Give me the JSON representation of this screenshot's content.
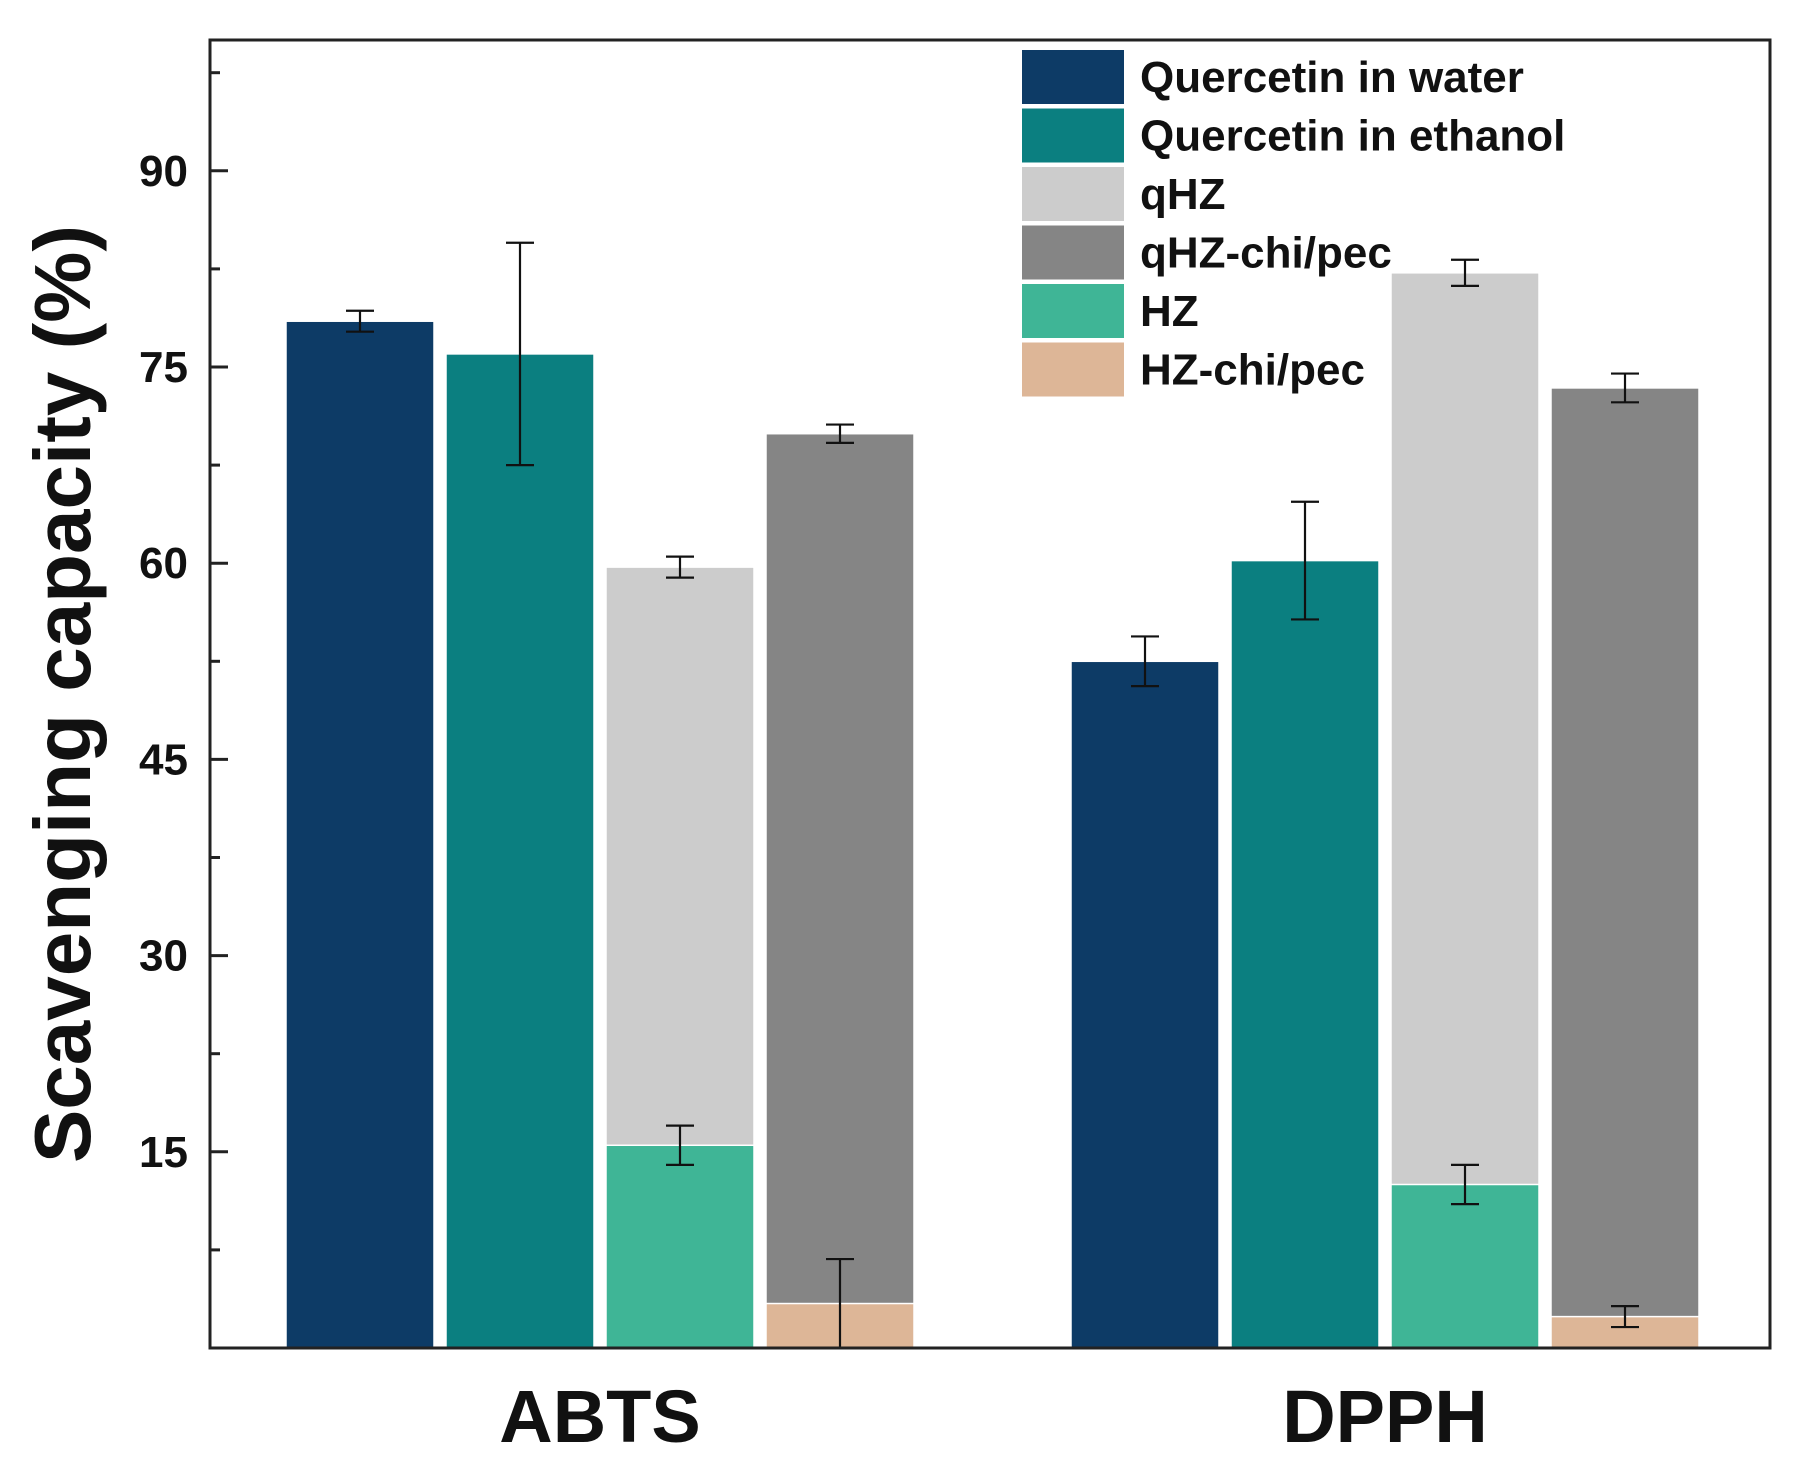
{
  "chart_data": {
    "type": "bar",
    "title": "",
    "xlabel": "",
    "ylabel": "Scavenging capacity (%)",
    "ylim": [
      0,
      100
    ],
    "yticks": [
      15,
      30,
      45,
      60,
      75,
      90
    ],
    "categories": [
      "ABTS",
      "DPPH"
    ],
    "legend_position": "top-right",
    "grid": false,
    "series": [
      {
        "name": "Quercetin in water",
        "color": "#0d3b66",
        "values": [
          78.5,
          52.5
        ],
        "errors": [
          0.8,
          1.9
        ]
      },
      {
        "name": "Quercetin in ethanol",
        "color": "#0b7f80",
        "values": [
          76.0,
          60.2
        ],
        "errors": [
          8.5,
          4.5
        ]
      },
      {
        "name": "qHZ",
        "color": "#cccccc",
        "values": [
          59.7,
          82.2
        ],
        "errors": [
          0.8,
          1.0
        ]
      },
      {
        "name": "qHZ-chi/pec",
        "color": "#858585",
        "values": [
          69.9,
          73.4
        ],
        "errors": [
          0.7,
          1.1
        ]
      },
      {
        "name": "HZ",
        "color": "#3fb596",
        "values": [
          15.5,
          12.5
        ],
        "errors": [
          1.5,
          1.5
        ]
      },
      {
        "name": "HZ-chi/pec",
        "color": "#ddb697",
        "values": [
          3.4,
          2.4
        ],
        "errors": [
          3.4,
          0.8
        ]
      }
    ],
    "overlay": {
      "HZ": "qHZ",
      "HZ-chi/pec": "qHZ-chi/pec"
    }
  }
}
